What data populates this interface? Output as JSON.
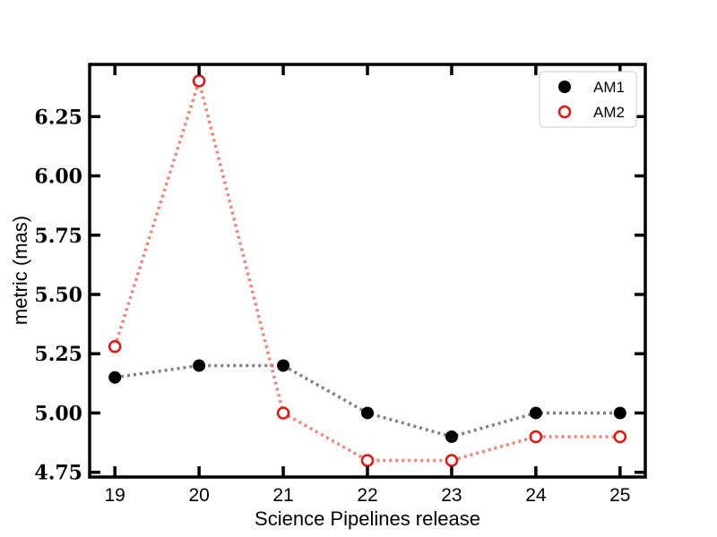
{
  "chart_data": {
    "type": "line",
    "xlabel": "Science Pipelines release",
    "ylabel": "metric (mas)",
    "categories": [
      "19",
      "20",
      "21",
      "22",
      "23",
      "24",
      "25"
    ],
    "x": [
      19,
      20,
      21,
      22,
      23,
      24,
      25
    ],
    "xlim": [
      18.7,
      25.3
    ],
    "ylim": [
      4.73,
      6.47
    ],
    "yticks": [
      "4.75",
      "5.00",
      "5.25",
      "5.50",
      "5.75",
      "6.00",
      "6.25"
    ],
    "ytick_values": [
      4.75,
      5.0,
      5.25,
      5.5,
      5.75,
      6.0,
      6.25
    ],
    "series": [
      {
        "name": "AM1",
        "values": [
          5.15,
          5.2,
          5.2,
          5.0,
          4.9,
          5.0,
          5.0
        ],
        "marker": "filled-circle",
        "marker_color": "#000000",
        "line_color": "#808080",
        "line_style": "dotted"
      },
      {
        "name": "AM2",
        "values": [
          5.28,
          6.4,
          5.0,
          4.8,
          4.8,
          4.9,
          4.9
        ],
        "marker": "open-circle",
        "marker_color": "#e8130c",
        "line_color": "#f7806f",
        "line_style": "dotted"
      }
    ],
    "legend": {
      "position": "top-right",
      "entries": [
        "AM1",
        "AM2"
      ]
    },
    "grid": false
  }
}
